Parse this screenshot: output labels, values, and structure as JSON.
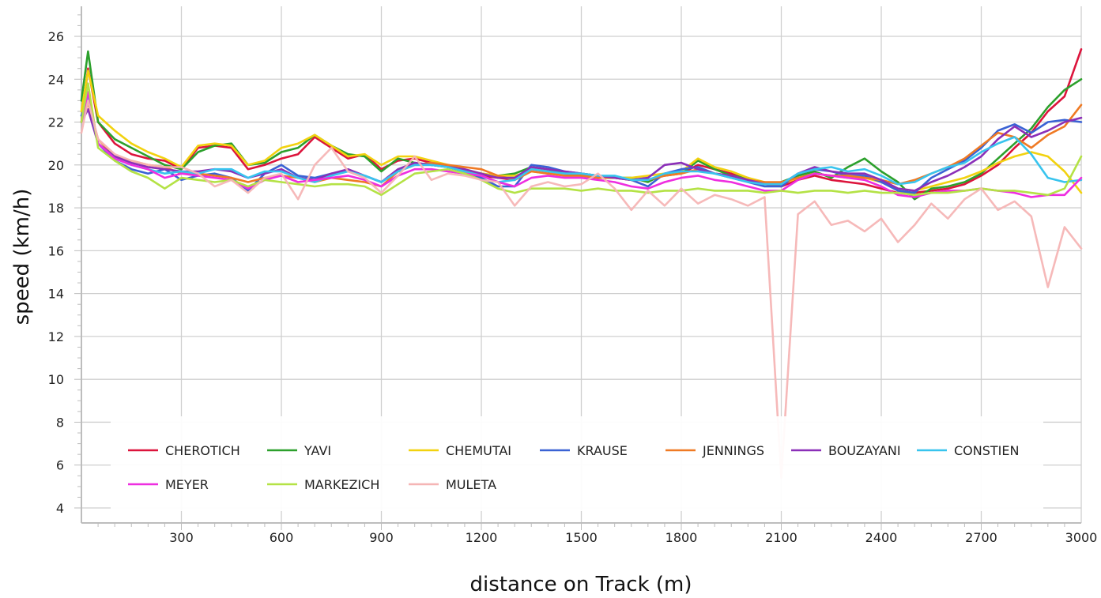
{
  "chart_data": {
    "type": "line",
    "title": "",
    "xlabel": "distance on Track (m)",
    "ylabel": "speed (km/h)",
    "xlim": [
      0,
      3000
    ],
    "ylim": [
      3.3,
      27.4
    ],
    "xticks": [
      300,
      600,
      900,
      1200,
      1500,
      1800,
      2100,
      2400,
      2700,
      3000
    ],
    "yticks": [
      4,
      6,
      8,
      10,
      12,
      14,
      16,
      18,
      20,
      22,
      24,
      26
    ],
    "grid": true,
    "legend_position": "bottom",
    "x": [
      0,
      20,
      50,
      100,
      150,
      200,
      250,
      300,
      350,
      400,
      450,
      500,
      550,
      600,
      650,
      700,
      750,
      800,
      850,
      900,
      950,
      1000,
      1050,
      1100,
      1150,
      1200,
      1250,
      1300,
      1350,
      1400,
      1450,
      1500,
      1550,
      1600,
      1650,
      1700,
      1750,
      1800,
      1850,
      1900,
      1950,
      2000,
      2050,
      2100,
      2150,
      2200,
      2250,
      2300,
      2350,
      2400,
      2450,
      2500,
      2550,
      2600,
      2650,
      2700,
      2750,
      2800,
      2850,
      2900,
      2950,
      3000
    ],
    "series": [
      {
        "name": "CHEROTICH",
        "color": "#dc143c",
        "values": [
          22.0,
          24.5,
          22.0,
          21.0,
          20.5,
          20.3,
          20.2,
          19.8,
          20.8,
          20.9,
          20.8,
          19.8,
          20.0,
          20.3,
          20.5,
          21.3,
          20.8,
          20.3,
          20.5,
          19.8,
          20.2,
          20.3,
          20.1,
          19.9,
          19.7,
          19.5,
          19.4,
          19.3,
          19.8,
          19.7,
          19.5,
          19.5,
          19.4,
          19.4,
          19.3,
          19.3,
          19.5,
          19.6,
          20.0,
          19.8,
          19.6,
          19.3,
          19.1,
          19.0,
          19.3,
          19.5,
          19.3,
          19.2,
          19.1,
          18.9,
          18.7,
          18.7,
          18.8,
          18.9,
          19.1,
          19.5,
          20.0,
          20.8,
          21.5,
          22.5,
          23.2,
          25.4
        ]
      },
      {
        "name": "YAVI",
        "color": "#2ca02c",
        "values": [
          23.0,
          25.3,
          22.0,
          21.2,
          20.8,
          20.4,
          20.0,
          19.8,
          20.6,
          20.9,
          21.0,
          20.0,
          20.1,
          20.6,
          20.8,
          21.4,
          20.9,
          20.5,
          20.4,
          19.7,
          20.3,
          20.1,
          20.0,
          19.9,
          19.7,
          19.6,
          19.5,
          19.6,
          19.9,
          19.8,
          19.6,
          19.5,
          19.4,
          19.4,
          19.4,
          19.2,
          19.6,
          19.6,
          20.2,
          19.8,
          19.5,
          19.4,
          19.1,
          19.2,
          19.5,
          19.7,
          19.4,
          19.9,
          20.3,
          19.7,
          19.2,
          18.4,
          18.9,
          19.0,
          19.2,
          19.6,
          20.3,
          21.0,
          21.7,
          22.7,
          23.5,
          24.0
        ]
      },
      {
        "name": "CHEMUTAI",
        "color": "#f2d20f",
        "values": [
          22.5,
          24.4,
          22.3,
          21.6,
          21.0,
          20.6,
          20.3,
          19.9,
          20.9,
          21.0,
          20.9,
          20.0,
          20.2,
          20.8,
          21.0,
          21.4,
          20.9,
          20.4,
          20.5,
          20.0,
          20.4,
          20.4,
          20.2,
          20.0,
          19.8,
          19.6,
          19.5,
          19.5,
          19.7,
          19.6,
          19.6,
          19.6,
          19.5,
          19.4,
          19.4,
          19.5,
          19.6,
          19.7,
          20.3,
          19.9,
          19.7,
          19.4,
          19.2,
          19.1,
          19.4,
          19.6,
          19.5,
          19.4,
          19.4,
          19.2,
          18.9,
          18.8,
          19.0,
          19.2,
          19.4,
          19.7,
          20.1,
          20.4,
          20.6,
          20.4,
          19.7,
          18.7
        ]
      },
      {
        "name": "KRAUSE",
        "color": "#3a62d4",
        "values": [
          22.3,
          23.0,
          21.0,
          20.2,
          19.8,
          19.6,
          19.8,
          19.3,
          19.5,
          19.6,
          19.4,
          18.8,
          19.6,
          20.0,
          19.5,
          19.4,
          19.6,
          19.7,
          19.5,
          19.2,
          19.7,
          20.0,
          20.0,
          20.0,
          19.7,
          19.4,
          19.0,
          19.0,
          20.0,
          19.9,
          19.7,
          19.6,
          19.5,
          19.4,
          19.3,
          19.0,
          19.6,
          19.8,
          19.9,
          19.6,
          19.4,
          19.2,
          19.0,
          19.0,
          19.6,
          19.8,
          19.7,
          19.5,
          19.5,
          19.2,
          18.8,
          18.7,
          19.4,
          19.8,
          20.2,
          20.8,
          21.6,
          21.9,
          21.5,
          22.0,
          22.1,
          22.0
        ]
      },
      {
        "name": "JENNINGS",
        "color": "#ef7a24",
        "values": [
          22.0,
          22.9,
          21.2,
          20.4,
          20.2,
          20.0,
          19.9,
          19.6,
          19.6,
          19.5,
          19.4,
          19.2,
          19.4,
          19.5,
          19.4,
          19.2,
          19.4,
          19.3,
          19.2,
          19.0,
          19.7,
          20.0,
          20.1,
          20.0,
          19.9,
          19.8,
          19.5,
          19.3,
          19.7,
          19.6,
          19.5,
          19.5,
          19.4,
          19.4,
          19.3,
          19.3,
          19.5,
          19.6,
          19.8,
          19.6,
          19.5,
          19.3,
          19.2,
          19.2,
          19.4,
          19.6,
          19.5,
          19.5,
          19.4,
          19.3,
          19.1,
          19.3,
          19.6,
          19.9,
          20.3,
          20.9,
          21.5,
          21.3,
          20.8,
          21.4,
          21.8,
          22.8
        ]
      },
      {
        "name": "BOUZAYANI",
        "color": "#8b2fb8",
        "values": [
          22.0,
          22.6,
          21.0,
          20.4,
          20.1,
          19.9,
          19.8,
          19.7,
          19.7,
          19.8,
          19.7,
          19.4,
          19.6,
          19.8,
          19.4,
          19.3,
          19.6,
          19.8,
          19.5,
          19.2,
          19.8,
          20.1,
          20.0,
          19.9,
          19.8,
          19.6,
          19.4,
          19.4,
          19.9,
          19.8,
          19.7,
          19.6,
          19.5,
          19.4,
          19.3,
          19.4,
          20.0,
          20.1,
          19.8,
          19.6,
          19.5,
          19.3,
          19.1,
          19.1,
          19.6,
          19.9,
          19.7,
          19.6,
          19.6,
          19.3,
          18.9,
          18.8,
          19.2,
          19.5,
          19.9,
          20.4,
          21.2,
          21.8,
          21.3,
          21.6,
          22.0,
          22.2
        ]
      },
      {
        "name": "CONSTIEN",
        "color": "#38c4ee",
        "values": [
          22.0,
          23.2,
          21.0,
          20.3,
          20.0,
          19.8,
          19.6,
          19.7,
          19.6,
          19.8,
          19.8,
          19.4,
          19.7,
          19.7,
          19.4,
          19.2,
          19.5,
          19.7,
          19.5,
          19.2,
          19.7,
          20.0,
          20.0,
          19.9,
          19.7,
          19.5,
          19.2,
          19.3,
          19.8,
          19.7,
          19.6,
          19.6,
          19.5,
          19.5,
          19.3,
          19.3,
          19.6,
          19.7,
          19.7,
          19.6,
          19.4,
          19.2,
          19.1,
          19.1,
          19.6,
          19.8,
          19.9,
          19.7,
          19.8,
          19.5,
          19.1,
          19.2,
          19.6,
          19.9,
          20.1,
          20.6,
          21.0,
          21.3,
          20.5,
          19.4,
          19.2,
          19.3
        ]
      },
      {
        "name": "MEYER",
        "color": "#ee2ee0",
        "values": [
          22.0,
          23.4,
          21.0,
          20.3,
          20.0,
          19.8,
          19.4,
          19.6,
          19.5,
          19.4,
          19.3,
          18.9,
          19.3,
          19.5,
          19.2,
          19.3,
          19.4,
          19.5,
          19.3,
          19.0,
          19.5,
          19.8,
          19.8,
          19.7,
          19.6,
          19.5,
          19.2,
          19.0,
          19.4,
          19.5,
          19.4,
          19.4,
          19.3,
          19.2,
          19.0,
          18.9,
          19.2,
          19.4,
          19.5,
          19.3,
          19.2,
          19.0,
          18.8,
          18.8,
          19.3,
          19.6,
          19.5,
          19.4,
          19.3,
          19.0,
          18.6,
          18.5,
          18.7,
          18.8,
          18.8,
          18.9,
          18.8,
          18.7,
          18.5,
          18.6,
          18.6,
          19.4
        ]
      },
      {
        "name": "MARKEZICH",
        "color": "#b4e245",
        "values": [
          22.0,
          23.8,
          20.8,
          20.2,
          19.7,
          19.4,
          18.9,
          19.4,
          19.3,
          19.2,
          19.3,
          19.0,
          19.3,
          19.2,
          19.1,
          19.0,
          19.1,
          19.1,
          19.0,
          18.6,
          19.1,
          19.6,
          19.7,
          19.8,
          19.6,
          19.3,
          18.9,
          18.7,
          18.9,
          18.9,
          18.9,
          18.8,
          18.9,
          18.8,
          18.8,
          18.7,
          18.8,
          18.8,
          18.9,
          18.8,
          18.8,
          18.8,
          18.7,
          18.8,
          18.7,
          18.8,
          18.8,
          18.7,
          18.8,
          18.7,
          18.7,
          18.6,
          18.7,
          18.7,
          18.8,
          18.9,
          18.8,
          18.8,
          18.7,
          18.6,
          18.9,
          20.4
        ]
      },
      {
        "name": "MULETA",
        "color": "#f5b5b5",
        "values": [
          21.5,
          23.0,
          21.2,
          20.5,
          20.2,
          20.0,
          19.9,
          19.9,
          19.6,
          19.0,
          19.3,
          18.7,
          19.4,
          19.6,
          18.4,
          20.0,
          20.8,
          19.7,
          19.4,
          18.7,
          19.5,
          20.4,
          19.3,
          19.6,
          19.5,
          19.3,
          19.2,
          18.1,
          19.0,
          19.2,
          19.0,
          19.1,
          19.6,
          18.9,
          17.9,
          18.8,
          18.1,
          18.9,
          18.2,
          18.6,
          18.4,
          18.1,
          18.5,
          5.4,
          17.7,
          18.3,
          17.2,
          17.4,
          16.9,
          17.5,
          16.4,
          17.2,
          18.2,
          17.5,
          18.4,
          18.9,
          17.9,
          18.3,
          17.6,
          14.3,
          17.1,
          16.1
        ]
      }
    ]
  }
}
